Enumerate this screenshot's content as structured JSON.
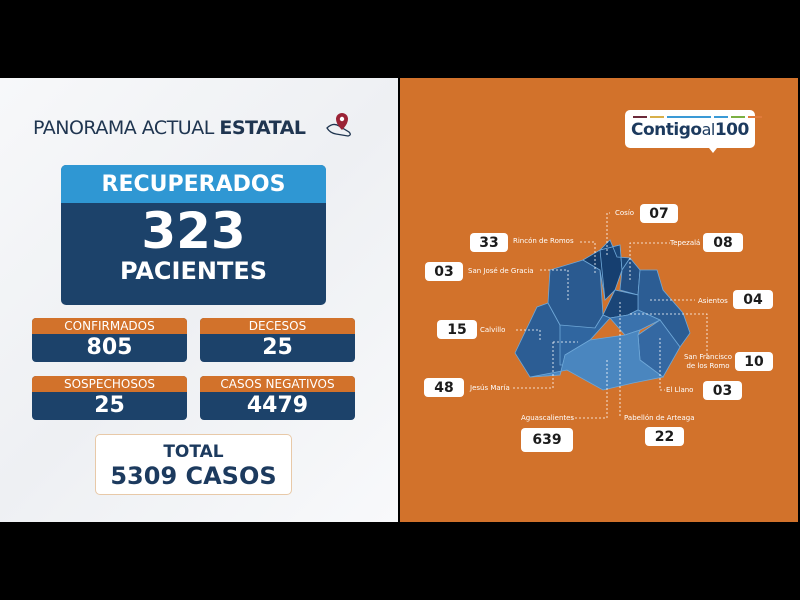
{
  "header": {
    "title_light": "PANORAMA ACTUAL ",
    "title_bold": "ESTATAL",
    "icon": "hand-location-pin-icon"
  },
  "recuperados": {
    "label": "RECUPERADOS",
    "value": "323",
    "unit": "PACIENTES"
  },
  "stats": [
    {
      "label": "CONFIRMADOS",
      "value": "805"
    },
    {
      "label": "DECESOS",
      "value": "25"
    },
    {
      "label": "SOSPECHOSOS",
      "value": "25"
    },
    {
      "label": "CASOS NEGATIVOS",
      "value": "4479"
    }
  ],
  "total": {
    "label": "TOTAL",
    "value": "5309 CASOS"
  },
  "logo": {
    "text_bold": "Contigo",
    "text_light": "al",
    "text_num": "100",
    "bar_colors": [
      "#6b2a3a",
      "#d8b04a",
      "#3a9ad6",
      "#3a9ad6",
      "#7bb043",
      "#e07a3a"
    ]
  },
  "colors": {
    "navy": "#1c426a",
    "light_blue": "#2f97d3",
    "orange": "#d2722b"
  },
  "municipios": [
    {
      "name": "Cosío",
      "cases": "07"
    },
    {
      "name": "Rincón de Romos",
      "cases": "33"
    },
    {
      "name": "Tepezalá",
      "cases": "08"
    },
    {
      "name": "San José de Gracia",
      "cases": "03"
    },
    {
      "name": "Asientos",
      "cases": "04"
    },
    {
      "name": "Calvillo",
      "cases": "15"
    },
    {
      "name": "San Francisco de los Romo",
      "cases": "10"
    },
    {
      "name": "Jesús María",
      "cases": "48"
    },
    {
      "name": "El Llano",
      "cases": "03"
    },
    {
      "name": "Aguascalientes",
      "cases": "639"
    },
    {
      "name": "Pabellón de Arteaga",
      "cases": "22"
    }
  ]
}
